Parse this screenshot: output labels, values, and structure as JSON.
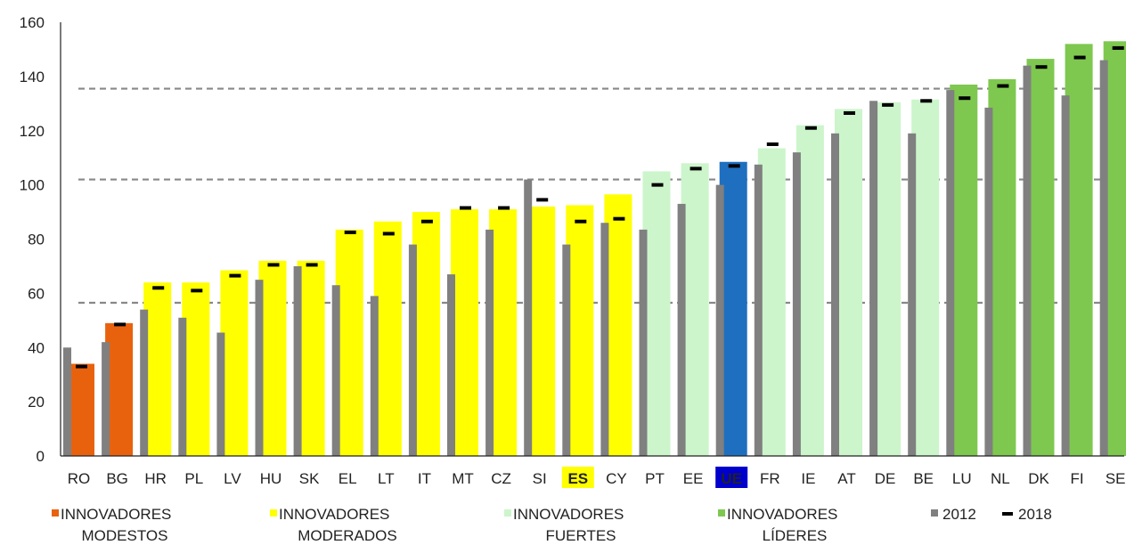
{
  "chart_data": {
    "type": "bar",
    "title": "",
    "xlabel": "",
    "ylabel": "",
    "ylim": [
      0,
      160
    ],
    "yticks": [
      0,
      20,
      40,
      60,
      80,
      100,
      120,
      140,
      160
    ],
    "reference_lines": [
      56.5,
      102,
      135.5
    ],
    "reference_line_style": "dashed",
    "categories": [
      "RO",
      "BG",
      "HR",
      "PL",
      "LV",
      "HU",
      "SK",
      "EL",
      "LT",
      "IT",
      "MT",
      "CZ",
      "SI",
      "ES",
      "CY",
      "PT",
      "EE",
      "UE",
      "FR",
      "IE",
      "AT",
      "DE",
      "BE",
      "LU",
      "NL",
      "DK",
      "FI",
      "SE"
    ],
    "groups": [
      "modestos",
      "modestos",
      "moderados",
      "moderados",
      "moderados",
      "moderados",
      "moderados",
      "moderados",
      "moderados",
      "moderados",
      "moderados",
      "moderados",
      "moderados",
      "moderados",
      "moderados",
      "fuertes",
      "fuertes",
      "ue",
      "fuertes",
      "fuertes",
      "fuertes",
      "fuertes",
      "fuertes",
      "lideres",
      "lideres",
      "lideres",
      "lideres",
      "lideres"
    ],
    "highlighted_labels": {
      "ES": "yellow",
      "UE": "blue"
    },
    "series": [
      {
        "key": "main",
        "values": [
          34,
          49,
          64,
          64,
          68.5,
          72,
          72,
          83.5,
          86.5,
          90,
          91,
          91,
          92,
          92.5,
          96.5,
          105,
          108,
          108.5,
          113.5,
          122,
          128,
          130.5,
          131.5,
          137,
          139,
          146.5,
          152,
          153
        ]
      },
      {
        "name": "2012",
        "values": [
          40,
          42,
          54,
          51,
          45.5,
          65,
          70,
          63,
          59,
          78,
          67,
          83.5,
          102,
          78,
          86,
          83.5,
          93,
          100,
          107.5,
          112,
          119,
          131,
          119,
          135,
          128.5,
          144,
          133,
          146
        ]
      },
      {
        "name": "2018",
        "values": [
          33,
          48.5,
          62,
          61,
          66.5,
          70.5,
          70.5,
          82.5,
          82,
          86.5,
          91.5,
          91.5,
          94.5,
          86.5,
          87.5,
          100,
          106,
          107,
          115,
          121,
          126.5,
          129.5,
          131,
          132,
          136.5,
          143.5,
          147,
          150.5
        ]
      }
    ],
    "legend": {
      "position": "bottom",
      "items": [
        {
          "key": "modestos",
          "line1": "INNOVADORES",
          "line2": "MODESTOS"
        },
        {
          "key": "moderados",
          "line1": "INNOVADORES",
          "line2": "MODERADOS"
        },
        {
          "key": "fuertes",
          "line1": "INNOVADORES",
          "line2": "FUERTES"
        },
        {
          "key": "lideres",
          "line1": "INNOVADORES",
          "line2": "LÍDERES"
        },
        {
          "key": "y2012",
          "line1": "2012",
          "line2": ""
        },
        {
          "key": "y2018",
          "line1": "2018",
          "line2": ""
        }
      ]
    },
    "colors": {
      "modestos": "#e8620e",
      "moderados": "#ffff00",
      "fuertes": "#ccf5cc",
      "lideres": "#7ec84f",
      "ue": "#1e6fc0",
      "bar2012": "#808080",
      "marker2018": "#000000",
      "es_label_bg": "#ffff00",
      "ue_label_bg": "#0000cc",
      "ue_label_text": "#ffffff",
      "reference_line": "#888888"
    }
  }
}
